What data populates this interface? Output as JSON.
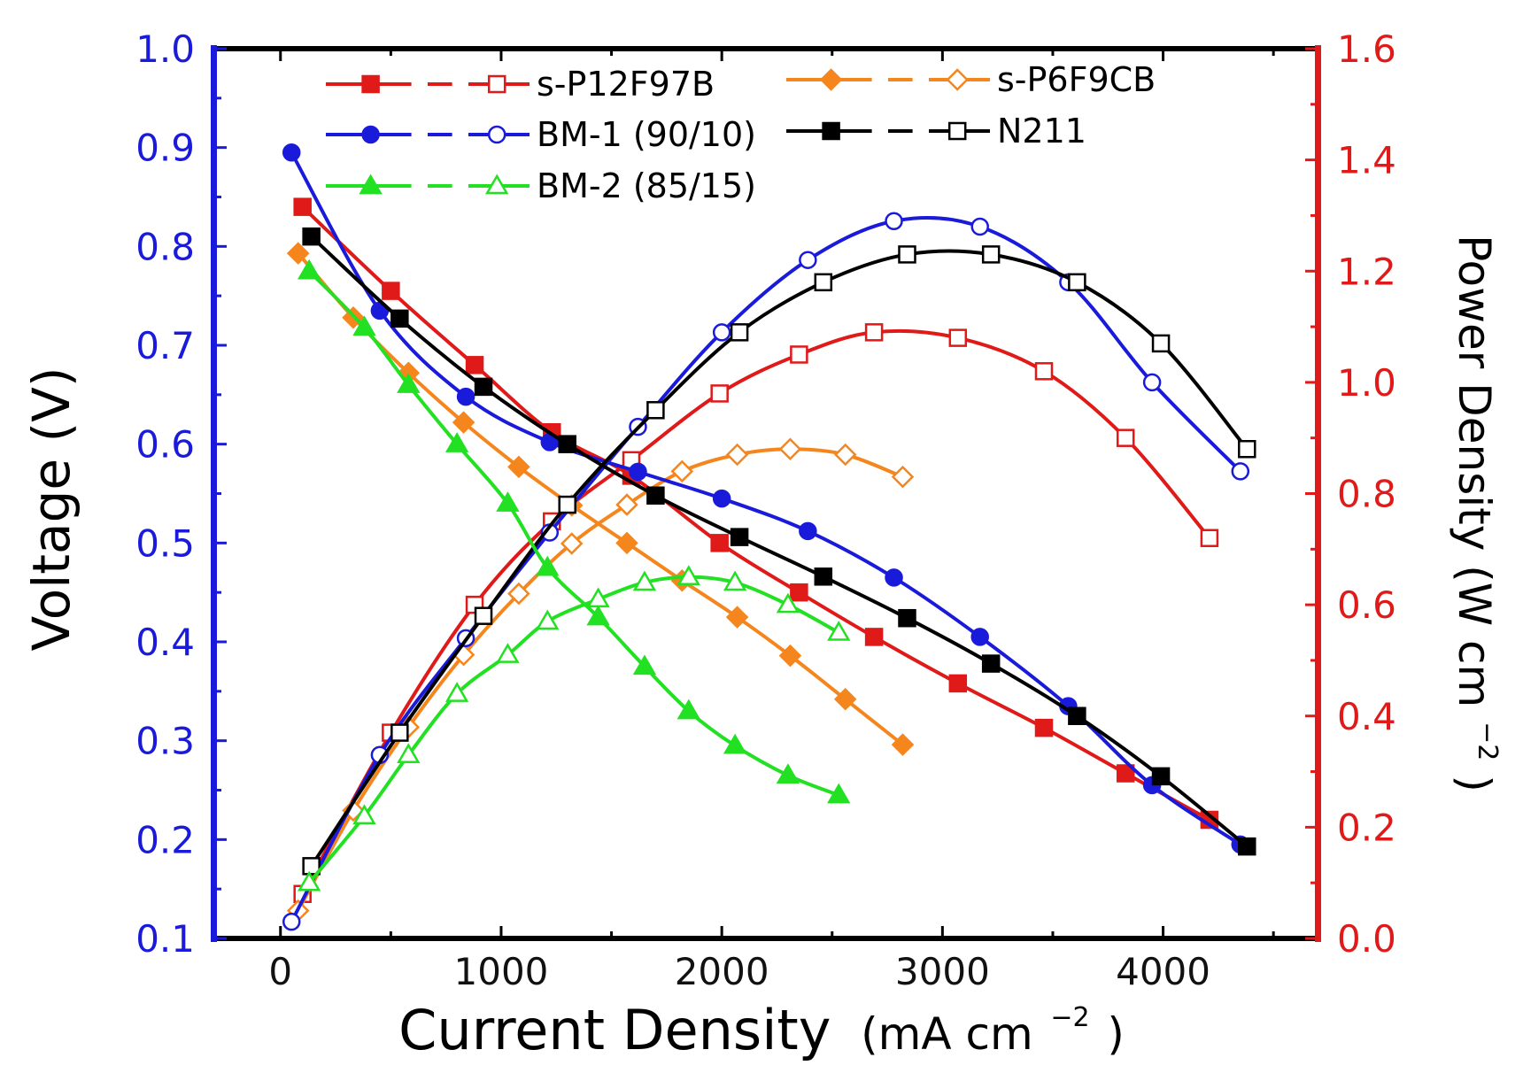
{
  "chart_data": {
    "type": "line",
    "title": "",
    "xlabel": "Current Density",
    "xlabel_unit": "(mA cm",
    "xlabel_unit_sup": "−2",
    "xlabel_unit_close": ")",
    "ylabel_left": "Voltage (V)",
    "ylabel_right": "Power Density (W cm",
    "ylabel_right_sup": "−2",
    "ylabel_right_close": ")",
    "xlim": [
      -300,
      4700
    ],
    "ylim_left": [
      0.1,
      1.0
    ],
    "ylim_right": [
      0.0,
      1.6
    ],
    "x_ticks": [
      0,
      1000,
      2000,
      3000,
      4000
    ],
    "x_tick_labels": [
      "0",
      "1000",
      "2000",
      "3000",
      "4000"
    ],
    "y_left_ticks": [
      0.1,
      0.2,
      0.3,
      0.4,
      0.5,
      0.6,
      0.7,
      0.8,
      0.9,
      1.0
    ],
    "y_left_tick_labels": [
      "0.1",
      "0.2",
      "0.3",
      "0.4",
      "0.5",
      "0.6",
      "0.7",
      "0.8",
      "0.9",
      "1.0"
    ],
    "y_right_ticks": [
      0.0,
      0.2,
      0.4,
      0.6,
      0.8,
      1.0,
      1.2,
      1.4,
      1.6
    ],
    "y_right_tick_labels": [
      "0.0",
      "0.2",
      "0.4",
      "0.6",
      "0.8",
      "1.0",
      "1.2",
      "1.4",
      "1.6"
    ],
    "colors": {
      "left_axis": "#1a1adb",
      "right_axis": "#e01919",
      "frame": "#000000"
    },
    "legend_position": "top",
    "series": [
      {
        "name": "s-P12F97B",
        "color": "#e01919",
        "marker": "square",
        "voltage": {
          "x": [
            100,
            500,
            880,
            1230,
            1590,
            1990,
            2350,
            2690,
            3070,
            3460,
            3830,
            4210
          ],
          "y": [
            0.84,
            0.755,
            0.68,
            0.612,
            0.568,
            0.5,
            0.45,
            0.405,
            0.358,
            0.313,
            0.267,
            0.22
          ]
        },
        "power": {
          "x": [
            100,
            500,
            880,
            1230,
            1590,
            1990,
            2350,
            2690,
            3070,
            3460,
            3830,
            4210
          ],
          "y": [
            0.08,
            0.37,
            0.6,
            0.75,
            0.86,
            0.98,
            1.05,
            1.09,
            1.08,
            1.02,
            0.9,
            0.72
          ]
        }
      },
      {
        "name": "s-P6F9CB",
        "color": "#f5861e",
        "marker": "diamond",
        "voltage": {
          "x": [
            80,
            330,
            580,
            830,
            1080,
            1320,
            1570,
            1820,
            2070,
            2310,
            2560,
            2820
          ],
          "y": [
            0.793,
            0.728,
            0.672,
            0.622,
            0.577,
            0.538,
            0.5,
            0.462,
            0.425,
            0.386,
            0.342,
            0.296
          ]
        },
        "power": {
          "x": [
            80,
            330,
            580,
            830,
            1080,
            1320,
            1570,
            1820,
            2070,
            2310,
            2560,
            2820
          ],
          "y": [
            0.05,
            0.23,
            0.38,
            0.51,
            0.62,
            0.71,
            0.78,
            0.84,
            0.87,
            0.88,
            0.87,
            0.83
          ]
        }
      },
      {
        "name": "BM-1 (90/10)",
        "color": "#1a1adb",
        "marker": "circle",
        "voltage": {
          "x": [
            50,
            450,
            840,
            1220,
            1620,
            2000,
            2390,
            2780,
            3170,
            3570,
            3950,
            4350
          ],
          "y": [
            0.895,
            0.735,
            0.648,
            0.602,
            0.572,
            0.545,
            0.512,
            0.465,
            0.405,
            0.335,
            0.255,
            0.195
          ]
        },
        "power": {
          "x": [
            50,
            450,
            840,
            1220,
            1620,
            2000,
            2390,
            2780,
            3170,
            3570,
            3950,
            4350
          ],
          "y": [
            0.03,
            0.33,
            0.54,
            0.73,
            0.92,
            1.09,
            1.22,
            1.29,
            1.28,
            1.18,
            1.0,
            0.84
          ]
        }
      },
      {
        "name": "N211",
        "color": "#000000",
        "marker": "square",
        "voltage": {
          "x": [
            140,
            540,
            920,
            1300,
            1700,
            2080,
            2460,
            2840,
            3220,
            3610,
            3990,
            4380
          ],
          "y": [
            0.81,
            0.727,
            0.658,
            0.6,
            0.548,
            0.506,
            0.466,
            0.424,
            0.378,
            0.325,
            0.264,
            0.193
          ]
        },
        "power": {
          "x": [
            140,
            540,
            920,
            1300,
            1700,
            2080,
            2460,
            2840,
            3220,
            3610,
            3990,
            4380
          ],
          "y": [
            0.13,
            0.37,
            0.58,
            0.78,
            0.95,
            1.09,
            1.18,
            1.23,
            1.23,
            1.18,
            1.07,
            0.88
          ]
        }
      },
      {
        "name": "BM-2 (85/15)",
        "color": "#22e022",
        "marker": "triangle",
        "voltage": {
          "x": [
            130,
            380,
            580,
            800,
            1030,
            1210,
            1440,
            1650,
            1850,
            2060,
            2300,
            2530
          ],
          "y": [
            0.775,
            0.718,
            0.66,
            0.6,
            0.54,
            0.475,
            0.425,
            0.375,
            0.33,
            0.295,
            0.265,
            0.245
          ]
        },
        "power": {
          "x": [
            130,
            380,
            580,
            800,
            1030,
            1210,
            1440,
            1650,
            1850,
            2060,
            2300,
            2530
          ],
          "y": [
            0.1,
            0.22,
            0.33,
            0.44,
            0.51,
            0.57,
            0.61,
            0.64,
            0.65,
            0.64,
            0.6,
            0.55
          ]
        }
      }
    ]
  }
}
